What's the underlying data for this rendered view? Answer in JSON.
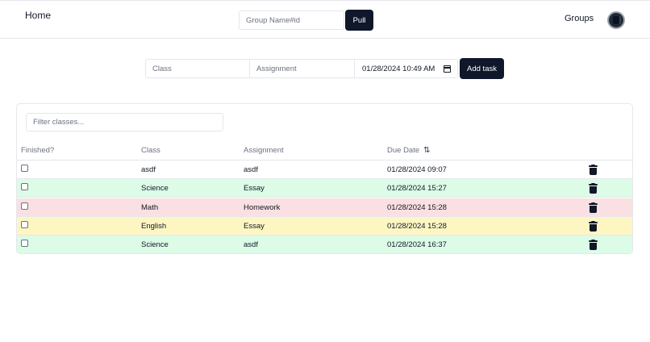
{
  "nav": {
    "home_label": "Home",
    "group_placeholder": "Group Name#id",
    "pull_label": "Pull",
    "groups_label": "Groups"
  },
  "task_form": {
    "class_placeholder": "Class",
    "assignment_placeholder": "Assignment",
    "due_value": "01/28/2024 10:49 AM",
    "add_label": "Add task"
  },
  "table": {
    "filter_placeholder": "Filter classes...",
    "columns": [
      "Finished?",
      "Class",
      "Assignment",
      "Due Date"
    ],
    "rows": [
      {
        "finished": false,
        "class": "asdf",
        "assignment": "asdf",
        "due": "01/28/2024 09:07",
        "bg": "#ffffff"
      },
      {
        "finished": false,
        "class": "Science",
        "assignment": "Essay",
        "due": "01/28/2024 15:27",
        "bg": "#dcfce7"
      },
      {
        "finished": false,
        "class": "Math",
        "assignment": "Homework",
        "due": "01/28/2024 15:28",
        "bg": "#fbe0e3"
      },
      {
        "finished": false,
        "class": "English",
        "assignment": "Essay",
        "due": "01/28/2024 15:28",
        "bg": "#fdf6c3"
      },
      {
        "finished": false,
        "class": "Science",
        "assignment": "asdf",
        "due": "01/28/2024 16:37",
        "bg": "#dcfce7"
      }
    ]
  },
  "icons": {
    "sort": "sort-icon",
    "delete": "trash-icon",
    "calendar": "calendar-icon",
    "avatar": "avatar-icon"
  },
  "colors": {
    "primary": "#0f172a",
    "green_row": "#dcfce7",
    "red_row": "#fbe0e3",
    "yellow_row": "#fdf6c3"
  }
}
